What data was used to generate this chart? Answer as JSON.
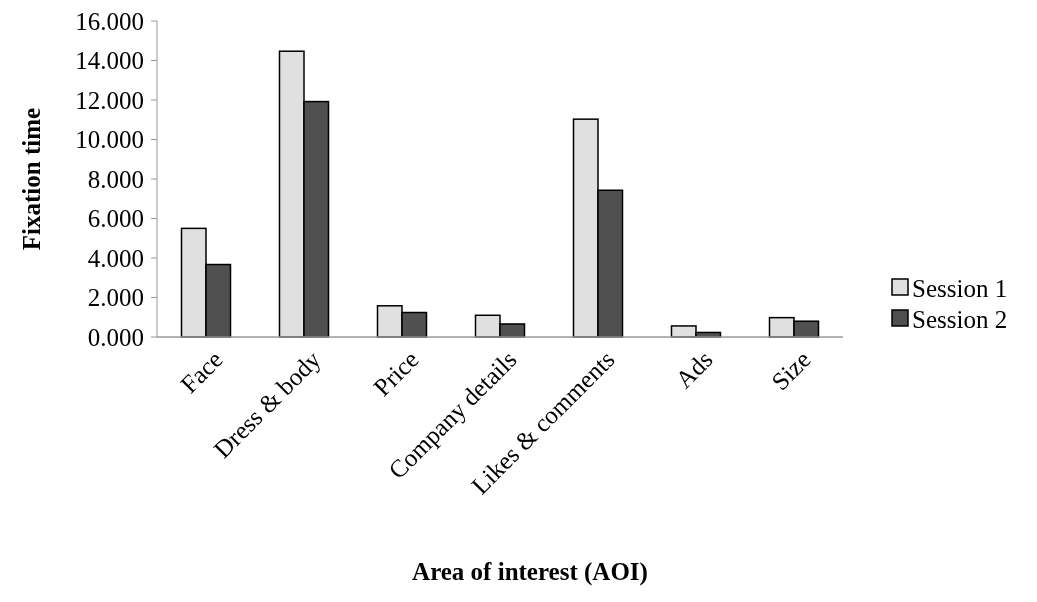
{
  "chart_data": {
    "type": "bar",
    "xlabel": "Area of interest (AOI)",
    "ylabel": "Fixation time",
    "categories": [
      "Face",
      "Dress & body",
      "Price",
      "Company details",
      "Likes & comments",
      "Ads",
      "Size"
    ],
    "series": [
      {
        "name": "Session 1",
        "color": "#e0e0e0",
        "values": [
          5.5,
          14.47,
          1.58,
          1.1,
          11.03,
          0.56,
          0.98
        ]
      },
      {
        "name": "Session 2",
        "color": "#505050",
        "values": [
          3.67,
          11.92,
          1.24,
          0.66,
          7.43,
          0.23,
          0.8
        ]
      }
    ],
    "ylim": [
      0,
      16
    ],
    "yticks": [
      {
        "value": 0,
        "label": "0.000"
      },
      {
        "value": 2,
        "label": "2.000"
      },
      {
        "value": 4,
        "label": "4.000"
      },
      {
        "value": 6,
        "label": "6.000"
      },
      {
        "value": 8,
        "label": "8.000"
      },
      {
        "value": 10,
        "label": "10.000"
      },
      {
        "value": 12,
        "label": "12.000"
      },
      {
        "value": 14,
        "label": "14.000"
      },
      {
        "value": 16,
        "label": "16.000"
      }
    ],
    "grid": false,
    "legend": "right"
  }
}
